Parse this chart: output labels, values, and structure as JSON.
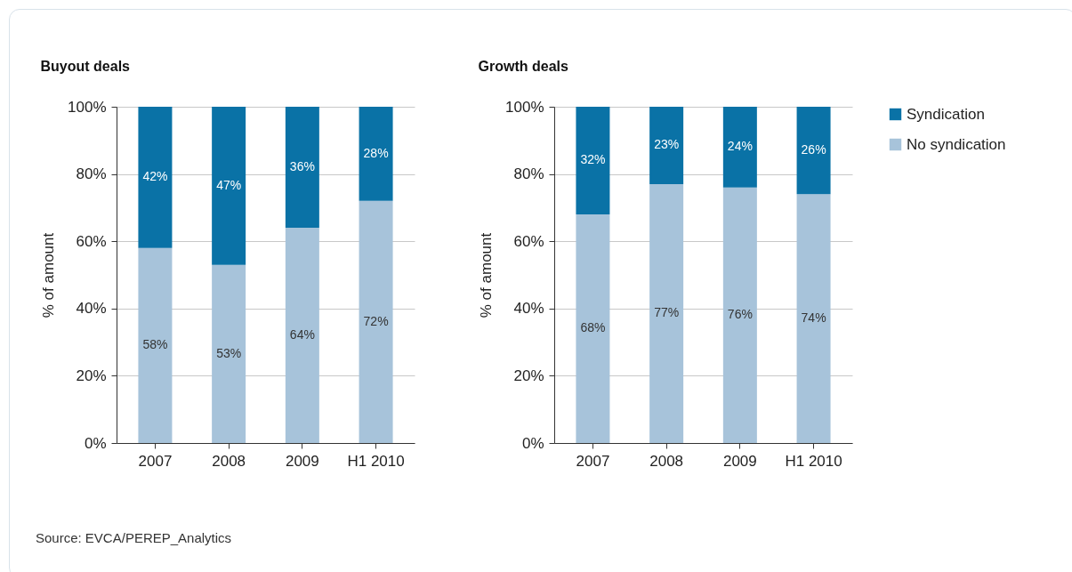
{
  "chart_data": [
    {
      "type": "bar",
      "stacked": true,
      "title": "Buyout deals",
      "ylabel": "% of amount",
      "categories": [
        "2007",
        "2008",
        "2009",
        "H1 2010"
      ],
      "series": [
        {
          "color": "#a7c3da",
          "values": [
            58,
            53,
            64,
            72
          ],
          "value_labels": [
            "58%",
            "53%",
            "64%",
            "72%"
          ]
        },
        {
          "color": "#0a72a6",
          "values": [
            42,
            47,
            36,
            28
          ],
          "value_labels": [
            "42%",
            "47%",
            "36%",
            "28%"
          ]
        }
      ],
      "ylim": [
        0,
        100
      ],
      "yticks": [
        {
          "value": 0,
          "label": "0%"
        },
        {
          "value": 20,
          "label": "20%"
        },
        {
          "value": 40,
          "label": "40%"
        },
        {
          "value": 60,
          "label": "60%"
        },
        {
          "value": 80,
          "label": "80%"
        },
        {
          "value": 100,
          "label": "100%"
        }
      ],
      "grid": "y",
      "annotations": [
        "Source: EVCA/PEREP_Analytics"
      ]
    },
    {
      "type": "bar",
      "stacked": true,
      "title": "Growth deals",
      "ylabel": "% of amount",
      "categories": [
        "2007",
        "2008",
        "2009",
        "H1 2010"
      ],
      "series": [
        {
          "name": "No syndication",
          "color": "#a7c3da",
          "values": [
            68,
            77,
            76,
            74
          ],
          "value_labels": [
            "68%",
            "77%",
            "76%",
            "74%"
          ]
        },
        {
          "name": "Syndication",
          "color": "#0a72a6",
          "values": [
            32,
            23,
            24,
            26
          ],
          "value_labels": [
            "32%",
            "23%",
            "24%",
            "26%"
          ]
        }
      ],
      "ylim": [
        0,
        100
      ],
      "yticks": [
        {
          "value": 0,
          "label": "0%"
        },
        {
          "value": 20,
          "label": "20%"
        },
        {
          "value": 40,
          "label": "40%"
        },
        {
          "value": 60,
          "label": "60%"
        },
        {
          "value": 80,
          "label": "80%"
        },
        {
          "value": 100,
          "label": "100%"
        }
      ],
      "grid": "y",
      "legend": "right"
    }
  ]
}
